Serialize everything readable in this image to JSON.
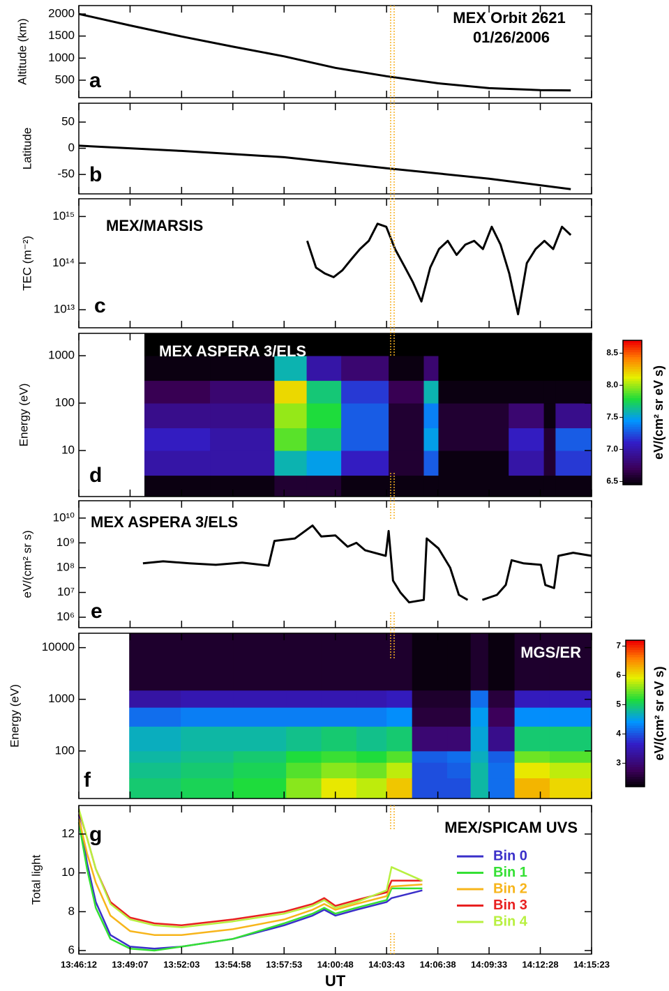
{
  "chart_data": [
    {
      "type": "line",
      "title": "MEX Orbit 2621",
      "subtitle": "01/26/2006",
      "panel_label": "a",
      "ylabel": "Altitude (km)",
      "color": "#000000",
      "x": [
        "13:46:12",
        "13:49:07",
        "13:52:03",
        "13:54:58",
        "13:57:53",
        "14:00:48",
        "14:03:43",
        "14:06:38",
        "14:09:33",
        "14:12:28",
        "14:14:12"
      ],
      "values": [
        2000,
        1740,
        1490,
        1260,
        1040,
        780,
        590,
        430,
        320,
        275,
        270
      ],
      "ylim": [
        105,
        2190
      ],
      "yticks": [
        500,
        1000,
        1500,
        2000
      ]
    },
    {
      "type": "line",
      "panel_label": "b",
      "ylabel": "Latitude",
      "color": "#000000",
      "x": [
        "13:46:12",
        "13:52:03",
        "13:57:53",
        "14:03:43",
        "14:09:33",
        "14:14:12"
      ],
      "values": [
        5,
        -5,
        -17,
        -38,
        -58,
        -78
      ],
      "ylim": [
        -87,
        86
      ],
      "yticks": [
        -50,
        0,
        50
      ]
    },
    {
      "type": "line",
      "title": "MEX/MARSIS",
      "panel_label": "c",
      "ylabel": "TEC (m⁻²)",
      "color": "#000000",
      "log": true,
      "x": [
        "13:59:12",
        "13:59:42",
        "14:00:12",
        "14:00:42",
        "14:01:12",
        "14:01:42",
        "14:02:12",
        "14:02:42",
        "14:03:12",
        "14:03:42",
        "14:04:12",
        "14:04:42",
        "14:05:12",
        "14:05:42",
        "14:06:12",
        "14:06:42",
        "14:07:12",
        "14:07:42",
        "14:08:12",
        "14:08:42",
        "14:09:12",
        "14:09:42",
        "14:10:12",
        "14:10:42",
        "14:11:12",
        "14:11:42",
        "14:12:12",
        "14:12:42",
        "14:13:12",
        "14:13:42",
        "14:14:12"
      ],
      "values": [
        300000000000000.0,
        80000000000000.0,
        60000000000000.0,
        50000000000000.0,
        70000000000000.0,
        120000000000000.0,
        200000000000000.0,
        300000000000000.0,
        700000000000000.0,
        600000000000000.0,
        200000000000000.0,
        90000000000000.0,
        40000000000000.0,
        15000000000000.0,
        80000000000000.0,
        200000000000000.0,
        300000000000000.0,
        150000000000000.0,
        250000000000000.0,
        300000000000000.0,
        200000000000000.0,
        600000000000000.0,
        250000000000000.0,
        60000000000000.0,
        8000000000000.0,
        100000000000000.0,
        200000000000000.0,
        300000000000000.0,
        200000000000000.0,
        600000000000000.0,
        400000000000000.0
      ],
      "ylim": [
        4100000000000.0,
        2400000000000000.0
      ],
      "yticks": [
        {
          "value": 10000000000000.0,
          "label": "10¹³"
        },
        {
          "value": 100000000000000.0,
          "label": "10¹⁴"
        },
        {
          "value": 1000000000000000.0,
          "label": "10¹⁵"
        }
      ]
    },
    {
      "type": "heatmap",
      "title": "MEX ASPERA 3/ELS",
      "panel_label": "d",
      "ylabel": "Energy (eV)",
      "log": true,
      "colorbar_label": "eV/(cm² sr eV s)",
      "x_edges": [
        "13:49:56",
        "13:53:40",
        "13:57:20",
        "13:59:10",
        "14:01:08",
        "14:03:50",
        "14:05:50",
        "14:06:40",
        "14:10:40",
        "14:12:40",
        "14:13:20",
        "14:15:23"
      ],
      "y_edges": [
        1.07,
        3,
        10,
        30,
        100,
        300,
        1000,
        2960
      ],
      "z": [
        [
          6.5,
          7.0,
          7.1,
          6.9,
          6.7,
          6.5,
          6.45
        ],
        [
          6.5,
          7.0,
          7.0,
          6.9,
          6.8,
          6.5,
          6.45
        ],
        [
          6.6,
          7.6,
          7.9,
          8.0,
          8.2,
          7.6,
          6.45
        ],
        [
          6.6,
          7.5,
          7.7,
          7.8,
          7.7,
          7.0,
          6.45
        ],
        [
          6.5,
          7.1,
          7.3,
          7.3,
          7.2,
          6.8,
          6.45
        ],
        [
          6.5,
          6.6,
          6.6,
          6.6,
          6.7,
          6.5,
          6.45
        ],
        [
          6.5,
          7.3,
          7.5,
          7.4,
          7.6,
          6.8,
          6.45
        ],
        [
          6.5,
          6.5,
          6.6,
          6.6,
          6.5,
          6.45,
          6.45
        ],
        [
          6.5,
          7.0,
          7.1,
          6.8,
          6.5,
          6.45,
          6.45
        ],
        [
          6.5,
          6.6,
          6.6,
          6.5,
          6.5,
          6.45,
          6.45
        ],
        [
          6.5,
          7.2,
          7.3,
          6.9,
          6.5,
          6.45,
          6.45
        ]
      ],
      "ylim": [
        1.07,
        2960
      ],
      "yticks": [
        10,
        100,
        1000
      ],
      "clim": [
        6.45,
        8.7
      ],
      "cticks": [
        6.5,
        {
          "value": 7,
          "label": "7.0"
        },
        7.5,
        {
          "value": 8,
          "label": "8.0"
        },
        8.5
      ]
    },
    {
      "type": "line",
      "title": "MEX ASPERA 3/ELS",
      "panel_label": "e",
      "ylabel": "eV/(cm² sr s)",
      "color": "#000000",
      "log": true,
      "x": [
        "13:49:51",
        "13:51:00",
        "13:52:30",
        "13:54:00",
        "13:55:30",
        "13:57:00",
        "13:57:20",
        "13:58:30",
        "13:59:30",
        "14:00:00",
        "14:00:48",
        "14:01:30",
        "14:02:00",
        "14:02:30",
        "14:03:40",
        "14:03:50",
        "14:04:05",
        "14:04:30",
        "14:05:00",
        "14:05:50",
        "14:06:00",
        "14:06:40",
        "14:07:20",
        "14:07:50",
        "14:08:20",
        "14:08:40",
        "14:09:10",
        "14:10:00",
        "14:10:30",
        "14:10:50",
        "14:11:30",
        "14:12:30",
        "14:12:45",
        "14:13:15",
        "14:13:30",
        "14:14:20",
        "14:15:23"
      ],
      "values": [
        150000000.0,
        180000000.0,
        150000000.0,
        130000000.0,
        160000000.0,
        120000000.0,
        1200000000.0,
        1500000000.0,
        5000000000.0,
        1800000000.0,
        2000000000.0,
        700000000.0,
        1000000000.0,
        500000000.0,
        300000000.0,
        3000000000.0,
        30000000.0,
        10000000.0,
        4000000.0,
        5000000.0,
        1500000000.0,
        600000000.0,
        100000000.0,
        8000000.0,
        5000000.0,
        null,
        5000000.0,
        8000000.0,
        20000000.0,
        200000000.0,
        150000000.0,
        130000000.0,
        20000000.0,
        15000000.0,
        300000000.0,
        400000000.0,
        300000000.0
      ],
      "ylim": [
        380000.0,
        50000000000.0
      ],
      "yticks": [
        {
          "value": 1000000.0,
          "label": "10⁶"
        },
        {
          "value": 10000000.0,
          "label": "10⁷"
        },
        {
          "value": 100000000.0,
          "label": "10⁸"
        },
        {
          "value": 1000000000.0,
          "label": "10⁹"
        },
        {
          "value": 10000000000.0,
          "label": "10¹⁰"
        }
      ]
    },
    {
      "type": "heatmap",
      "title": "MGS/ER",
      "panel_label": "f",
      "ylabel": "Energy (eV)",
      "log": true,
      "colorbar_label": "eV/(cm² sr eV s)",
      "x_edges": [
        "13:49:04",
        "13:52:00",
        "13:55:00",
        "13:58:00",
        "14:00:00",
        "14:02:00",
        "14:03:43",
        "14:05:10",
        "14:07:10",
        "14:08:30",
        "14:09:30",
        "14:11:00",
        "14:13:00",
        "14:15:23"
      ],
      "y_edges": [
        12,
        30,
        60,
        100,
        300,
        700,
        1500,
        19000
      ],
      "z": [
        [
          5.0,
          4.9,
          4.8,
          4.7,
          4.2,
          3.4,
          2.5
        ],
        [
          5.1,
          5.0,
          4.9,
          4.8,
          4.3,
          3.5,
          2.5
        ],
        [
          5.2,
          5.1,
          5.0,
          4.8,
          4.3,
          3.5,
          2.5
        ],
        [
          5.6,
          5.4,
          5.2,
          4.9,
          4.3,
          3.5,
          2.5
        ],
        [
          6.0,
          5.6,
          5.3,
          5.0,
          4.3,
          3.5,
          2.5
        ],
        [
          5.8,
          5.5,
          5.2,
          4.9,
          4.3,
          3.5,
          2.5
        ],
        [
          6.2,
          5.8,
          5.4,
          5.0,
          4.4,
          3.6,
          2.5
        ],
        [
          4.0,
          4.0,
          4.1,
          3.0,
          2.6,
          2.5,
          2.3
        ],
        [
          4.0,
          4.1,
          4.2,
          3.0,
          2.6,
          2.5,
          2.3
        ],
        [
          4.8,
          4.8,
          4.7,
          4.6,
          4.5,
          4.2,
          2.5
        ],
        [
          4.2,
          4.2,
          4.1,
          3.2,
          2.8,
          2.6,
          2.3
        ],
        [
          6.3,
          6.0,
          5.5,
          5.0,
          4.4,
          3.6,
          2.5
        ],
        [
          6.1,
          5.8,
          5.4,
          5.0,
          4.4,
          3.6,
          2.5
        ]
      ],
      "ylim": [
        12,
        19000
      ],
      "yticks": [
        100,
        1000,
        10000
      ],
      "clim": [
        2.2,
        7.2
      ],
      "cticks": [
        3,
        4,
        5,
        6,
        7
      ]
    },
    {
      "type": "line",
      "title": "MEX/SPICAM UVS",
      "panel_label": "g",
      "ylabel": "Total light",
      "xlabel": "UT",
      "x": [
        "13:46:12",
        "13:46:40",
        "13:47:10",
        "13:48:00",
        "13:49:07",
        "13:50:30",
        "13:52:03",
        "13:54:58",
        "13:57:53",
        "13:59:30",
        "14:00:10",
        "14:00:48",
        "14:02:00",
        "14:03:43",
        "14:04:00",
        "14:05:45"
      ],
      "series": [
        {
          "name": "Bin 0",
          "color": "#3a2fc9",
          "values": [
            13.0,
            10.5,
            8.5,
            6.8,
            6.2,
            6.1,
            6.2,
            6.6,
            7.3,
            7.8,
            8.1,
            7.8,
            8.1,
            8.5,
            8.7,
            9.1
          ]
        },
        {
          "name": "Bin 1",
          "color": "#34e034",
          "values": [
            12.6,
            10.2,
            8.2,
            6.6,
            6.1,
            6.0,
            6.2,
            6.6,
            7.4,
            7.9,
            8.2,
            7.9,
            8.2,
            8.6,
            9.2,
            9.2
          ]
        },
        {
          "name": "Bin 2",
          "color": "#f7b51b",
          "values": [
            12.8,
            11.0,
            9.5,
            7.8,
            7.0,
            6.8,
            6.8,
            7.1,
            7.6,
            8.1,
            8.4,
            8.1,
            8.4,
            8.8,
            9.3,
            9.4
          ]
        },
        {
          "name": "Bin 3",
          "color": "#e82020",
          "values": [
            13.2,
            11.8,
            10.2,
            8.5,
            7.7,
            7.4,
            7.3,
            7.6,
            8.0,
            8.4,
            8.7,
            8.3,
            8.6,
            9.0,
            9.6,
            9.6
          ]
        },
        {
          "name": "Bin 4",
          "color": "#b8f040",
          "values": [
            13.3,
            11.8,
            10.2,
            8.4,
            7.6,
            7.3,
            7.2,
            7.5,
            7.9,
            8.3,
            8.6,
            8.2,
            8.5,
            9.1,
            10.3,
            9.6
          ]
        }
      ],
      "ylim": [
        5.82,
        13.47
      ],
      "yticks": [
        6,
        8,
        10,
        12
      ],
      "xlim": [
        "13:46:12",
        "14:15:23"
      ],
      "xticks": [
        "13:46:12",
        "13:49:07",
        "13:52:03",
        "13:54:58",
        "13:57:53",
        "14:00:48",
        "14:03:43",
        "14:06:38",
        "14:09:33",
        "14:12:28",
        "14:15:23"
      ]
    }
  ]
}
